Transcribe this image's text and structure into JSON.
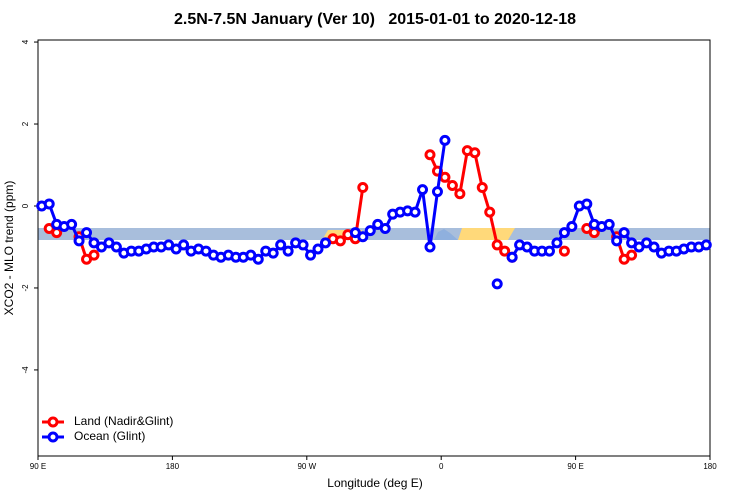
{
  "chart_data": {
    "type": "line",
    "title": "2.5N-7.5N January (Ver 10)   2015-01-01 to 2020-12-18",
    "xlabel": "Longitude (deg E)",
    "ylabel": "XCO2 - MLO trend (ppm)",
    "xlim": [
      90,
      540
    ],
    "xticks": [
      {
        "value": 90,
        "label": "90 E"
      },
      180,
      {
        "value": 270,
        "label": "90 W"
      },
      {
        "value": 360,
        "label": "0"
      },
      {
        "value": 450,
        "label": "90 E"
      },
      {
        "value": 540,
        "label": "180"
      }
    ],
    "ylim": [
      -6.1,
      4.05
    ],
    "yticks": [
      -4,
      -2,
      0,
      2,
      4
    ],
    "legend": "bottomleft",
    "x": [
      92.5,
      97.5,
      102.5,
      107.5,
      112.5,
      117.5,
      122.5,
      127.5,
      132.5,
      137.5,
      142.5,
      147.5,
      152.5,
      157.5,
      162.5,
      167.5,
      172.5,
      177.5,
      182.5,
      187.5,
      192.5,
      197.5,
      202.5,
      207.5,
      212.5,
      217.5,
      222.5,
      227.5,
      232.5,
      237.5,
      242.5,
      247.5,
      252.5,
      257.5,
      262.5,
      267.5,
      272.5,
      277.5,
      282.5,
      287.5,
      292.5,
      297.5,
      302.5,
      307.5,
      312.5,
      317.5,
      322.5,
      327.5,
      332.5,
      337.5,
      342.5,
      347.5,
      352.5,
      357.5,
      362.5,
      367.5,
      372.5,
      377.5,
      382.5,
      387.5,
      392.5,
      397.5,
      402.5,
      407.5,
      412.5,
      417.5,
      422.5,
      427.5,
      432.5,
      437.5,
      442.5,
      447.5,
      452.5,
      457.5,
      462.5,
      467.5,
      472.5,
      477.5,
      482.5,
      487.5,
      492.5,
      497.5,
      502.5,
      507.5,
      512.5,
      517.5,
      522.5,
      527.5,
      532.5,
      537.5
    ],
    "series": [
      {
        "name": "Land (Nadir&Glint)",
        "color": "#ff0000",
        "values": [
          null,
          -0.55,
          -0.65,
          null,
          null,
          -0.75,
          -1.3,
          -1.2,
          null,
          null,
          null,
          null,
          null,
          null,
          null,
          null,
          null,
          null,
          null,
          null,
          null,
          null,
          null,
          null,
          null,
          null,
          null,
          null,
          null,
          null,
          null,
          null,
          null,
          null,
          null,
          null,
          null,
          null,
          null,
          -0.8,
          -0.85,
          -0.7,
          -0.8,
          0.45,
          null,
          null,
          null,
          null,
          null,
          null,
          null,
          null,
          1.25,
          0.85,
          0.7,
          0.5,
          0.3,
          1.35,
          1.3,
          0.45,
          -0.15,
          -0.95,
          -1.1,
          -1.25,
          null,
          null,
          null,
          null,
          null,
          null,
          -1.1,
          null,
          null,
          -0.55,
          -0.65,
          null,
          null,
          -0.75,
          -1.3,
          -1.2,
          null,
          null,
          null,
          null,
          null,
          null,
          null,
          null,
          null,
          null
        ]
      },
      {
        "name": "Ocean (Glint)",
        "color": "#0000ff",
        "values": [
          0.0,
          0.05,
          -0.45,
          -0.5,
          -0.45,
          -0.85,
          -0.65,
          -0.9,
          -1.0,
          -0.9,
          -1.0,
          -1.15,
          -1.1,
          -1.1,
          -1.05,
          -1.0,
          -1.0,
          -0.95,
          -1.05,
          -0.95,
          -1.1,
          -1.05,
          -1.1,
          -1.2,
          -1.25,
          -1.2,
          -1.25,
          -1.25,
          -1.2,
          -1.3,
          -1.1,
          -1.15,
          -0.95,
          -1.1,
          -0.9,
          -0.95,
          -1.2,
          -1.05,
          -0.9,
          null,
          null,
          null,
          -0.65,
          -0.75,
          -0.6,
          -0.45,
          -0.55,
          -0.2,
          -0.15,
          -0.12,
          -0.15,
          0.4,
          -1.0,
          0.35,
          1.6,
          null,
          null,
          null,
          null,
          null,
          null,
          -1.9,
          null,
          -1.25,
          -0.95,
          -1.0,
          -1.1,
          -1.1,
          -1.1,
          -0.9,
          -0.65,
          -0.5,
          0.0,
          0.05,
          -0.45,
          -0.5,
          -0.45,
          -0.85,
          -0.65,
          -0.9,
          -1.0,
          -0.9,
          -1.0,
          -1.15,
          -1.1,
          -1.1,
          -1.05,
          -1.0,
          -1.0,
          -0.95
        ]
      }
    ]
  }
}
